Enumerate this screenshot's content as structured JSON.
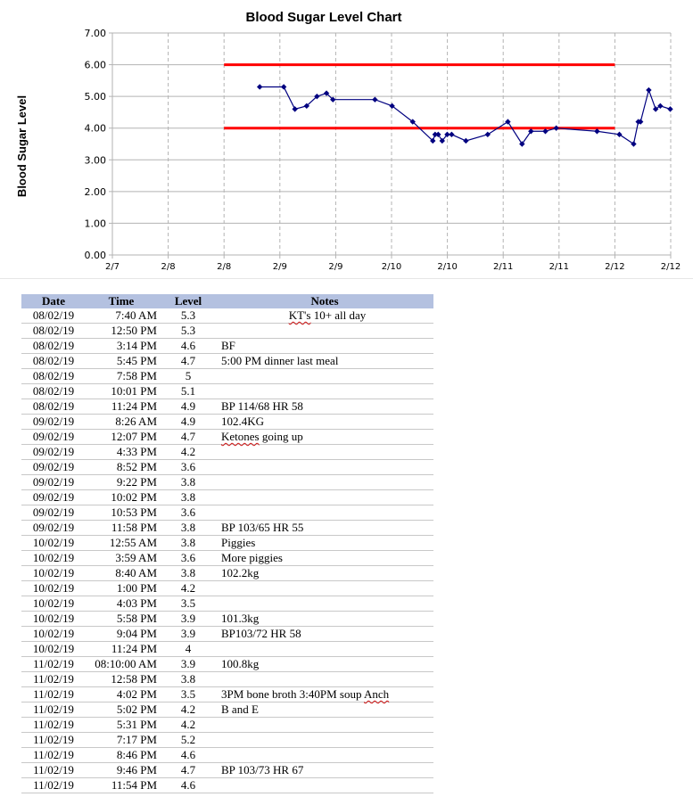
{
  "chart_data": {
    "type": "line",
    "title": "Blood Sugar Level Chart",
    "ylabel": "Blood Sugar Level",
    "xlabel": "",
    "ylim": [
      0,
      7
    ],
    "y_ticks": [
      "0.00",
      "1.00",
      "2.00",
      "3.00",
      "4.00",
      "5.00",
      "6.00",
      "7.00"
    ],
    "x_range": [
      "2019-02-07",
      "2019-02-12"
    ],
    "x_ticks": [
      "2/7",
      "2/8",
      "2/8",
      "2/9",
      "2/9",
      "2/10",
      "2/10",
      "2/11",
      "2/11",
      "2/12",
      "2/12"
    ],
    "grid": true,
    "legend": "none",
    "reference_lines": [
      {
        "y": 6.0,
        "color": "#ff0000"
      },
      {
        "y": 4.0,
        "color": "#ff0000"
      }
    ],
    "series_color": "#000080",
    "series": [
      {
        "x": [
          "2019-02-08 07:40",
          "2019-02-08 12:50",
          "2019-02-08 15:14",
          "2019-02-08 17:45",
          "2019-02-08 19:58",
          "2019-02-08 22:01",
          "2019-02-08 23:24",
          "2019-02-09 08:26",
          "2019-02-09 12:07",
          "2019-02-09 16:33",
          "2019-02-09 20:52",
          "2019-02-09 21:22",
          "2019-02-09 22:02",
          "2019-02-09 22:53",
          "2019-02-09 23:58",
          "2019-02-10 00:55",
          "2019-02-10 03:59",
          "2019-02-10 08:40",
          "2019-02-10 13:00",
          "2019-02-10 16:03",
          "2019-02-10 17:58",
          "2019-02-10 21:04",
          "2019-02-10 23:24",
          "2019-02-11 08:10",
          "2019-02-11 12:58",
          "2019-02-11 16:02",
          "2019-02-11 17:02",
          "2019-02-11 17:31",
          "2019-02-11 19:17",
          "2019-02-11 20:46",
          "2019-02-11 21:46",
          "2019-02-11 23:54"
        ],
        "values": [
          5.3,
          5.3,
          4.6,
          4.7,
          5.0,
          5.1,
          4.9,
          4.9,
          4.7,
          4.2,
          3.6,
          3.8,
          3.8,
          3.6,
          3.8,
          3.8,
          3.6,
          3.8,
          4.2,
          3.5,
          3.9,
          3.9,
          4.0,
          3.9,
          3.8,
          3.5,
          4.2,
          4.2,
          5.2,
          4.6,
          4.7,
          4.6
        ]
      }
    ]
  },
  "table": {
    "headers": {
      "date": "Date",
      "time": "Time",
      "level": "Level",
      "notes": "Notes"
    },
    "rows": [
      {
        "date": "08/02/19",
        "time": "7:40 AM",
        "level": "5.3",
        "notes": "KT's 10+ all day"
      },
      {
        "date": "08/02/19",
        "time": "12:50 PM",
        "level": "5.3",
        "notes": ""
      },
      {
        "date": "08/02/19",
        "time": "3:14 PM",
        "level": "4.6",
        "notes": "BF"
      },
      {
        "date": "08/02/19",
        "time": "5:45 PM",
        "level": "4.7",
        "notes": "5:00 PM dinner last meal"
      },
      {
        "date": "08/02/19",
        "time": "7:58 PM",
        "level": "5",
        "notes": ""
      },
      {
        "date": "08/02/19",
        "time": "10:01 PM",
        "level": "5.1",
        "notes": ""
      },
      {
        "date": "08/02/19",
        "time": "11:24 PM",
        "level": "4.9",
        "notes": "BP 114/68 HR 58"
      },
      {
        "date": "09/02/19",
        "time": "8:26 AM",
        "level": "4.9",
        "notes": "102.4KG"
      },
      {
        "date": "09/02/19",
        "time": "12:07 PM",
        "level": "4.7",
        "notes": "Ketones going up"
      },
      {
        "date": "09/02/19",
        "time": "4:33 PM",
        "level": "4.2",
        "notes": ""
      },
      {
        "date": "09/02/19",
        "time": "8:52 PM",
        "level": "3.6",
        "notes": ""
      },
      {
        "date": "09/02/19",
        "time": "9:22 PM",
        "level": "3.8",
        "notes": ""
      },
      {
        "date": "09/02/19",
        "time": "10:02 PM",
        "level": "3.8",
        "notes": ""
      },
      {
        "date": "09/02/19",
        "time": "10:53 PM",
        "level": "3.6",
        "notes": ""
      },
      {
        "date": "09/02/19",
        "time": "11:58 PM",
        "level": "3.8",
        "notes": "BP 103/65 HR 55"
      },
      {
        "date": "10/02/19",
        "time": "12:55 AM",
        "level": "3.8",
        "notes": "Piggies"
      },
      {
        "date": "10/02/19",
        "time": "3:59 AM",
        "level": "3.6",
        "notes": "More piggies"
      },
      {
        "date": "10/02/19",
        "time": "8:40 AM",
        "level": "3.8",
        "notes": "102.2kg"
      },
      {
        "date": "10/02/19",
        "time": "1:00 PM",
        "level": "4.2",
        "notes": ""
      },
      {
        "date": "10/02/19",
        "time": "4:03 PM",
        "level": "3.5",
        "notes": ""
      },
      {
        "date": "10/02/19",
        "time": "5:58 PM",
        "level": "3.9",
        "notes": "101.3kg"
      },
      {
        "date": "10/02/19",
        "time": "9:04 PM",
        "level": "3.9",
        "notes": "BP103/72 HR 58"
      },
      {
        "date": "10/02/19",
        "time": "11:24 PM",
        "level": "4",
        "notes": ""
      },
      {
        "date": "11/02/19",
        "time": "08:10:00 AM",
        "level": "3.9",
        "notes": "100.8kg"
      },
      {
        "date": "11/02/19",
        "time": "12:58 PM",
        "level": "3.8",
        "notes": ""
      },
      {
        "date": "11/02/19",
        "time": "4:02 PM",
        "level": "3.5",
        "notes": "3PM bone broth 3:40PM  soup Anch"
      },
      {
        "date": "11/02/19",
        "time": "5:02 PM",
        "level": "4.2",
        "notes": "B and E"
      },
      {
        "date": "11/02/19",
        "time": "5:31 PM",
        "level": "4.2",
        "notes": ""
      },
      {
        "date": "11/02/19",
        "time": "7:17 PM",
        "level": "5.2",
        "notes": ""
      },
      {
        "date": "11/02/19",
        "time": "8:46 PM",
        "level": "4.6",
        "notes": ""
      },
      {
        "date": "11/02/19",
        "time": "9:46 PM",
        "level": "4.7",
        "notes": "BP 103/73 HR 67"
      },
      {
        "date": "11/02/19",
        "time": "11:54 PM",
        "level": "4.6",
        "notes": ""
      }
    ]
  }
}
